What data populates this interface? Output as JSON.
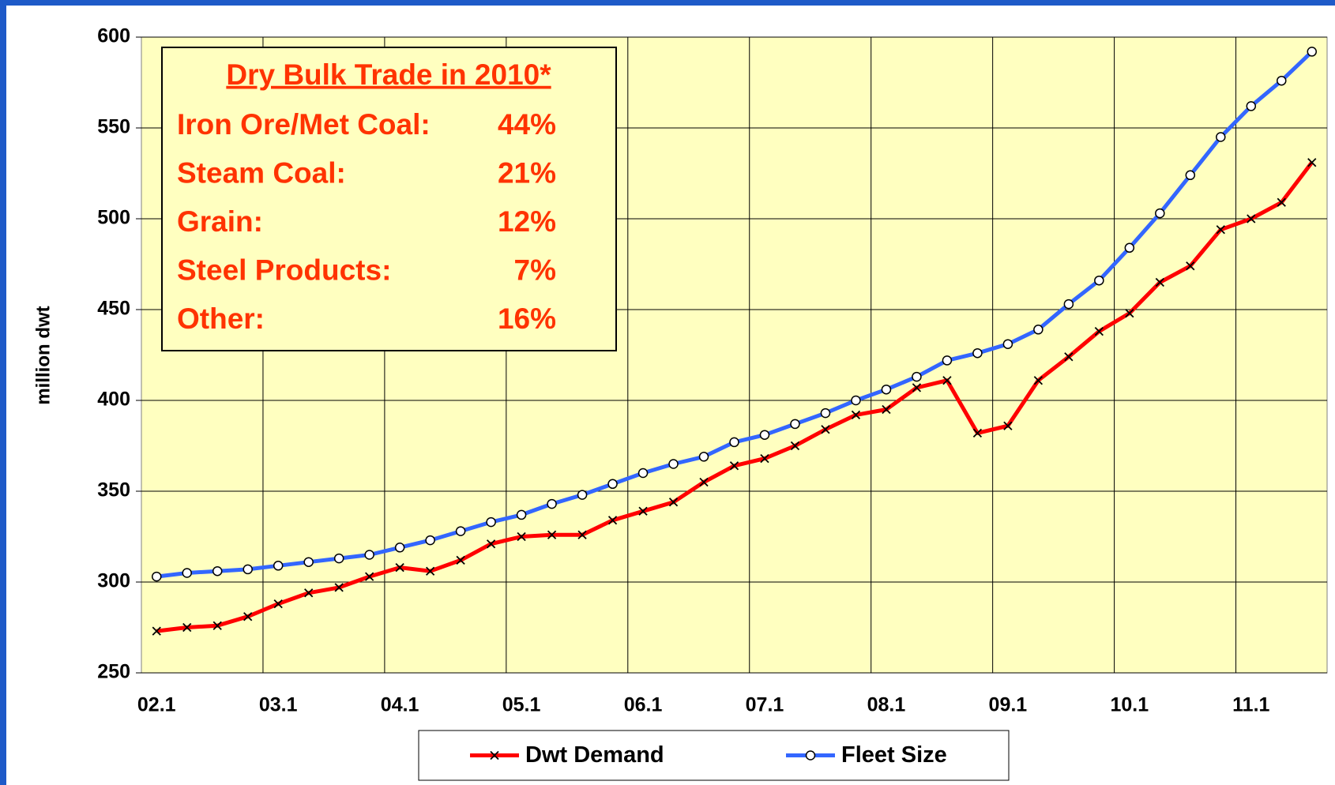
{
  "chart_data": {
    "type": "line",
    "ylabel": "million dwt",
    "categories": [
      "02.1",
      null,
      null,
      null,
      "03.1",
      null,
      null,
      null,
      "04.1",
      null,
      null,
      null,
      "05.1",
      null,
      null,
      null,
      "06.1",
      null,
      null,
      null,
      "07.1",
      null,
      null,
      null,
      "08.1",
      null,
      null,
      null,
      "09.1",
      null,
      null,
      null,
      "10.1",
      null,
      null,
      null,
      "11.1",
      null,
      null
    ],
    "series": [
      {
        "name": "Dwt Demand",
        "color": "#ff0000",
        "marker": "x",
        "values": [
          273,
          275,
          276,
          281,
          288,
          294,
          297,
          303,
          308,
          306,
          312,
          321,
          325,
          326,
          326,
          334,
          339,
          344,
          355,
          364,
          368,
          375,
          384,
          392,
          395,
          407,
          411,
          382,
          386,
          411,
          424,
          438,
          448,
          465,
          474,
          494,
          500,
          509,
          531
        ]
      },
      {
        "name": "Fleet Size",
        "color": "#3366ff",
        "marker": "circle",
        "values": [
          303,
          305,
          306,
          307,
          309,
          311,
          313,
          315,
          319,
          323,
          328,
          333,
          337,
          343,
          348,
          354,
          360,
          365,
          369,
          377,
          381,
          387,
          393,
          400,
          406,
          413,
          422,
          426,
          431,
          439,
          453,
          466,
          484,
          503,
          524,
          545,
          562,
          576,
          592
        ]
      }
    ],
    "ylim": [
      250,
      600
    ],
    "yticks": [
      250,
      300,
      350,
      400,
      450,
      500,
      550,
      600
    ],
    "grid": true,
    "legend": "bottom",
    "annotation": {
      "title": "Dry Bulk Trade in 2010*",
      "items": [
        {
          "label": "Iron Ore/Met Coal:",
          "value": "44%"
        },
        {
          "label": "Steam Coal:",
          "value": "21%"
        },
        {
          "label": "Grain:",
          "value": "12%"
        },
        {
          "label": "Steel Products:",
          "value": "7%"
        },
        {
          "label": "Other:",
          "value": "16%"
        }
      ]
    }
  }
}
